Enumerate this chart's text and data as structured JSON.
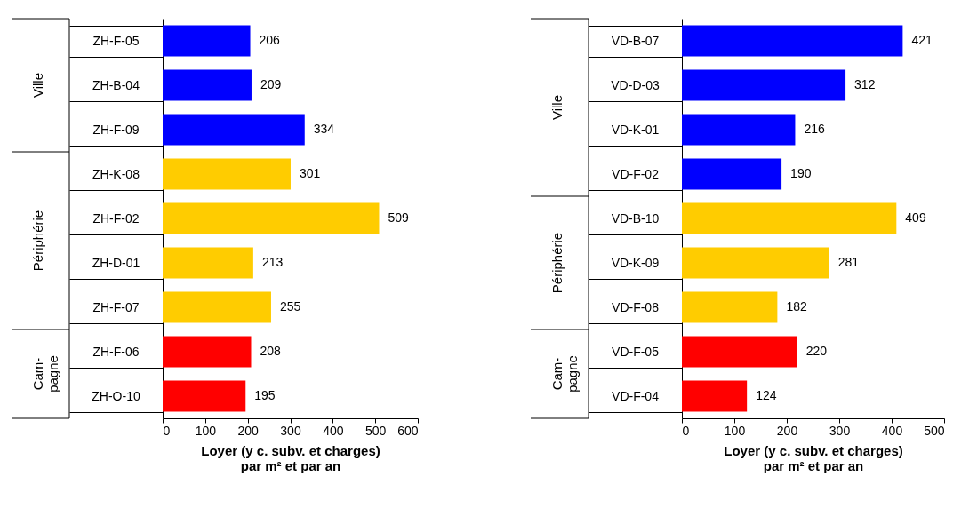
{
  "chart_data": [
    {
      "type": "bar",
      "orientation": "horizontal",
      "categories": [
        "ZH-F-05",
        "ZH-B-04",
        "ZH-F-09",
        "ZH-K-08",
        "ZH-F-02",
        "ZH-D-01",
        "ZH-F-07",
        "ZH-F-06",
        "ZH-O-10"
      ],
      "values": [
        206,
        209,
        334,
        301,
        509,
        213,
        255,
        208,
        195
      ],
      "colors": [
        "#0000ff",
        "#0000ff",
        "#0000ff",
        "#ffcc00",
        "#ffcc00",
        "#ffcc00",
        "#ffcc00",
        "#ff0000",
        "#ff0000"
      ],
      "xlim": [
        0,
        600
      ],
      "xticks": [
        0,
        100,
        200,
        300,
        400,
        500,
        600
      ],
      "xlabel": "Loyer (y c. subv. et charges)\npar m² et par an",
      "data_labels": true,
      "annotations": [
        "Ville",
        "Périphérie",
        "Cam-\npagne"
      ]
    },
    {
      "type": "bar",
      "orientation": "horizontal",
      "categories": [
        "VD-B-07",
        "VD-D-03",
        "VD-K-01",
        "VD-F-02",
        "VD-B-10",
        "VD-K-09",
        "VD-F-08",
        "VD-F-05",
        "VD-F-04"
      ],
      "values": [
        421,
        312,
        216,
        190,
        409,
        281,
        182,
        220,
        124
      ],
      "colors": [
        "#0000ff",
        "#0000ff",
        "#0000ff",
        "#0000ff",
        "#ffcc00",
        "#ffcc00",
        "#ffcc00",
        "#ff0000",
        "#ff0000"
      ],
      "xlim": [
        0,
        500
      ],
      "xticks": [
        0,
        100,
        200,
        300,
        400,
        500
      ],
      "xlabel": "Loyer (y c. subv. et charges)\npar m² et par an",
      "data_labels": true,
      "annotations": [
        "Ville",
        "Périphérie",
        "Cam-\npagne"
      ]
    }
  ]
}
